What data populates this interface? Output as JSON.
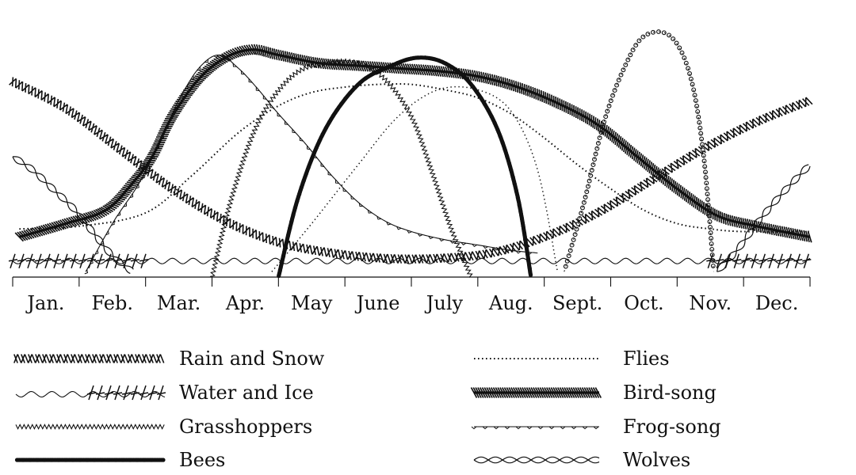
{
  "chart_data": {
    "type": "line",
    "title": "",
    "xlabel": "",
    "ylabel": "",
    "categories": [
      "Jan.",
      "Feb.",
      "Mar.",
      "Apr.",
      "May",
      "June",
      "July",
      "Aug.",
      "Sept.",
      "Oct.",
      "Nov.",
      "Dec."
    ],
    "xlim": [
      0,
      12
    ],
    "ylim": [
      0,
      100
    ],
    "grid": false,
    "legend_position": "bottom",
    "series": [
      {
        "name": "Rain and Snow",
        "style": "rain",
        "color": "#111111",
        "points": [
          [
            0,
            73
          ],
          [
            0.8,
            63
          ],
          [
            1.6,
            48
          ],
          [
            2.4,
            33
          ],
          [
            3.2,
            21
          ],
          [
            4,
            13
          ],
          [
            4.8,
            9
          ],
          [
            5.6,
            7
          ],
          [
            6.4,
            7
          ],
          [
            7.2,
            9
          ],
          [
            8,
            15
          ],
          [
            8.8,
            24
          ],
          [
            9.6,
            36
          ],
          [
            10.4,
            48
          ],
          [
            11.2,
            58
          ],
          [
            12,
            66
          ]
        ]
      },
      {
        "name": "Water and Ice",
        "style": "water",
        "color": "#111111",
        "points": [
          [
            0,
            6
          ],
          [
            12,
            6
          ]
        ],
        "ice_ranges": [
          [
            0,
            2.0
          ],
          [
            10.5,
            12.0
          ]
        ]
      },
      {
        "name": "Grasshoppers",
        "style": "grasshoppers",
        "color": "#111111",
        "points": [
          [
            3.0,
            0
          ],
          [
            3.3,
            30
          ],
          [
            3.7,
            58
          ],
          [
            4.2,
            75
          ],
          [
            4.7,
            80
          ],
          [
            5.2,
            80
          ],
          [
            5.6,
            74
          ],
          [
            6.0,
            60
          ],
          [
            6.3,
            40
          ],
          [
            6.6,
            18
          ],
          [
            6.9,
            0
          ]
        ]
      },
      {
        "name": "Bees",
        "style": "bees",
        "color": "#111111",
        "points": [
          [
            4.0,
            0
          ],
          [
            4.3,
            30
          ],
          [
            4.7,
            55
          ],
          [
            5.2,
            72
          ],
          [
            5.7,
            79
          ],
          [
            6.1,
            82
          ],
          [
            6.5,
            80
          ],
          [
            6.9,
            72
          ],
          [
            7.3,
            55
          ],
          [
            7.6,
            30
          ],
          [
            7.8,
            0
          ]
        ]
      },
      {
        "name": "Flies",
        "style": "flies",
        "color": "#111111",
        "points": [
          [
            0.1,
            18
          ],
          [
            1,
            19
          ],
          [
            2,
            24
          ],
          [
            2.7,
            38
          ],
          [
            3.4,
            54
          ],
          [
            4,
            64
          ],
          [
            4.5,
            69
          ],
          [
            5,
            71
          ],
          [
            5.5,
            72
          ],
          [
            6,
            72
          ],
          [
            6.5,
            70
          ],
          [
            7,
            67
          ],
          [
            7.5,
            61
          ],
          [
            8,
            52
          ],
          [
            8.5,
            42
          ],
          [
            9,
            33
          ],
          [
            9.5,
            25
          ],
          [
            10,
            20
          ],
          [
            10.5,
            18
          ],
          [
            11,
            17
          ],
          [
            12,
            17
          ]
        ]
      },
      {
        "name": "Bird-song",
        "style": "birdsong",
        "color": "#111111",
        "points": [
          [
            0.1,
            15
          ],
          [
            0.8,
            20
          ],
          [
            1.4,
            25
          ],
          [
            1.8,
            35
          ],
          [
            2.1,
            45
          ],
          [
            2.4,
            60
          ],
          [
            2.8,
            74
          ],
          [
            3.2,
            82
          ],
          [
            3.6,
            85
          ],
          [
            4,
            83
          ],
          [
            4.6,
            80
          ],
          [
            5.2,
            79
          ],
          [
            5.8,
            78
          ],
          [
            6.4,
            77
          ],
          [
            7,
            75
          ],
          [
            7.6,
            71
          ],
          [
            8.2,
            65
          ],
          [
            8.8,
            57
          ],
          [
            9.4,
            45
          ],
          [
            10,
            33
          ],
          [
            10.6,
            23
          ],
          [
            11.2,
            19
          ],
          [
            12,
            15
          ]
        ]
      },
      {
        "name": "Frog-song",
        "style": "frogsong",
        "color": "#111111",
        "points": [
          [
            1.1,
            2
          ],
          [
            1.5,
            20
          ],
          [
            1.9,
            35
          ],
          [
            2.2,
            50
          ],
          [
            2.5,
            66
          ],
          [
            2.8,
            78
          ],
          [
            3.1,
            83
          ],
          [
            3.4,
            78
          ],
          [
            3.7,
            70
          ],
          [
            4,
            61
          ],
          [
            4.4,
            50
          ],
          [
            4.8,
            38
          ],
          [
            5.2,
            28
          ],
          [
            5.6,
            21
          ],
          [
            6,
            17
          ],
          [
            6.5,
            14
          ],
          [
            7,
            12
          ],
          [
            7.5,
            10
          ],
          [
            7.9,
            9
          ]
        ]
      },
      {
        "name": "Wolves",
        "style": "wolves",
        "color": "#111111",
        "points": [
          [
            0,
            45
          ],
          [
            0.3,
            40
          ],
          [
            0.6,
            33
          ],
          [
            0.9,
            26
          ],
          [
            1.2,
            17
          ],
          [
            1.5,
            8
          ],
          [
            1.8,
            2
          ]
        ],
        "points2": [
          [
            10.6,
            2
          ],
          [
            10.9,
            10
          ],
          [
            11.2,
            20
          ],
          [
            11.5,
            29
          ],
          [
            11.8,
            37
          ],
          [
            12,
            42
          ]
        ]
      },
      {
        "name": "",
        "style": "plain-dotted",
        "color": "#111111",
        "points": [
          [
            3.9,
            2
          ],
          [
            4.5,
            20
          ],
          [
            5.2,
            42
          ],
          [
            5.8,
            60
          ],
          [
            6.4,
            70
          ],
          [
            7,
            70
          ],
          [
            7.5,
            62
          ],
          [
            7.9,
            40
          ],
          [
            8.2,
            2
          ]
        ]
      },
      {
        "name": "",
        "style": "crosses",
        "color": "#111111",
        "points": [
          [
            8.3,
            2
          ],
          [
            8.6,
            28
          ],
          [
            8.9,
            58
          ],
          [
            9.2,
            78
          ],
          [
            9.5,
            90
          ],
          [
            9.9,
            90
          ],
          [
            10.2,
            75
          ],
          [
            10.4,
            45
          ],
          [
            10.55,
            2
          ]
        ]
      }
    ]
  }
}
